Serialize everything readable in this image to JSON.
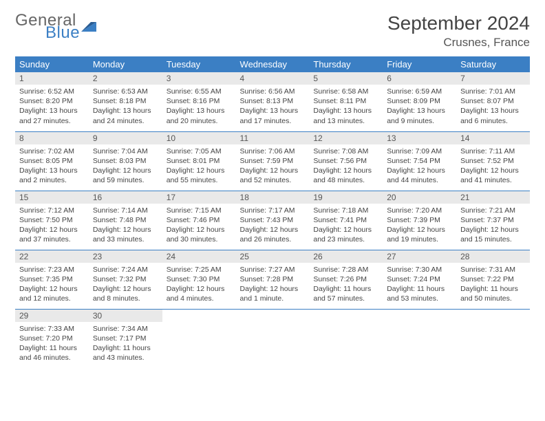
{
  "brand": {
    "word1": "General",
    "word2": "Blue"
  },
  "header": {
    "title": "September 2024",
    "location": "Crusnes, France"
  },
  "colors": {
    "header_bg": "#3b7fc4",
    "header_text": "#ffffff",
    "daynum_bg": "#e9e9e9",
    "row_border": "#3b7fc4",
    "text": "#444444",
    "page_bg": "#ffffff"
  },
  "weekdays": [
    "Sunday",
    "Monday",
    "Tuesday",
    "Wednesday",
    "Thursday",
    "Friday",
    "Saturday"
  ],
  "weeks": [
    [
      {
        "n": "1",
        "sr": "Sunrise: 6:52 AM",
        "ss": "Sunset: 8:20 PM",
        "d1": "Daylight: 13 hours",
        "d2": "and 27 minutes."
      },
      {
        "n": "2",
        "sr": "Sunrise: 6:53 AM",
        "ss": "Sunset: 8:18 PM",
        "d1": "Daylight: 13 hours",
        "d2": "and 24 minutes."
      },
      {
        "n": "3",
        "sr": "Sunrise: 6:55 AM",
        "ss": "Sunset: 8:16 PM",
        "d1": "Daylight: 13 hours",
        "d2": "and 20 minutes."
      },
      {
        "n": "4",
        "sr": "Sunrise: 6:56 AM",
        "ss": "Sunset: 8:13 PM",
        "d1": "Daylight: 13 hours",
        "d2": "and 17 minutes."
      },
      {
        "n": "5",
        "sr": "Sunrise: 6:58 AM",
        "ss": "Sunset: 8:11 PM",
        "d1": "Daylight: 13 hours",
        "d2": "and 13 minutes."
      },
      {
        "n": "6",
        "sr": "Sunrise: 6:59 AM",
        "ss": "Sunset: 8:09 PM",
        "d1": "Daylight: 13 hours",
        "d2": "and 9 minutes."
      },
      {
        "n": "7",
        "sr": "Sunrise: 7:01 AM",
        "ss": "Sunset: 8:07 PM",
        "d1": "Daylight: 13 hours",
        "d2": "and 6 minutes."
      }
    ],
    [
      {
        "n": "8",
        "sr": "Sunrise: 7:02 AM",
        "ss": "Sunset: 8:05 PM",
        "d1": "Daylight: 13 hours",
        "d2": "and 2 minutes."
      },
      {
        "n": "9",
        "sr": "Sunrise: 7:04 AM",
        "ss": "Sunset: 8:03 PM",
        "d1": "Daylight: 12 hours",
        "d2": "and 59 minutes."
      },
      {
        "n": "10",
        "sr": "Sunrise: 7:05 AM",
        "ss": "Sunset: 8:01 PM",
        "d1": "Daylight: 12 hours",
        "d2": "and 55 minutes."
      },
      {
        "n": "11",
        "sr": "Sunrise: 7:06 AM",
        "ss": "Sunset: 7:59 PM",
        "d1": "Daylight: 12 hours",
        "d2": "and 52 minutes."
      },
      {
        "n": "12",
        "sr": "Sunrise: 7:08 AM",
        "ss": "Sunset: 7:56 PM",
        "d1": "Daylight: 12 hours",
        "d2": "and 48 minutes."
      },
      {
        "n": "13",
        "sr": "Sunrise: 7:09 AM",
        "ss": "Sunset: 7:54 PM",
        "d1": "Daylight: 12 hours",
        "d2": "and 44 minutes."
      },
      {
        "n": "14",
        "sr": "Sunrise: 7:11 AM",
        "ss": "Sunset: 7:52 PM",
        "d1": "Daylight: 12 hours",
        "d2": "and 41 minutes."
      }
    ],
    [
      {
        "n": "15",
        "sr": "Sunrise: 7:12 AM",
        "ss": "Sunset: 7:50 PM",
        "d1": "Daylight: 12 hours",
        "d2": "and 37 minutes."
      },
      {
        "n": "16",
        "sr": "Sunrise: 7:14 AM",
        "ss": "Sunset: 7:48 PM",
        "d1": "Daylight: 12 hours",
        "d2": "and 33 minutes."
      },
      {
        "n": "17",
        "sr": "Sunrise: 7:15 AM",
        "ss": "Sunset: 7:46 PM",
        "d1": "Daylight: 12 hours",
        "d2": "and 30 minutes."
      },
      {
        "n": "18",
        "sr": "Sunrise: 7:17 AM",
        "ss": "Sunset: 7:43 PM",
        "d1": "Daylight: 12 hours",
        "d2": "and 26 minutes."
      },
      {
        "n": "19",
        "sr": "Sunrise: 7:18 AM",
        "ss": "Sunset: 7:41 PM",
        "d1": "Daylight: 12 hours",
        "d2": "and 23 minutes."
      },
      {
        "n": "20",
        "sr": "Sunrise: 7:20 AM",
        "ss": "Sunset: 7:39 PM",
        "d1": "Daylight: 12 hours",
        "d2": "and 19 minutes."
      },
      {
        "n": "21",
        "sr": "Sunrise: 7:21 AM",
        "ss": "Sunset: 7:37 PM",
        "d1": "Daylight: 12 hours",
        "d2": "and 15 minutes."
      }
    ],
    [
      {
        "n": "22",
        "sr": "Sunrise: 7:23 AM",
        "ss": "Sunset: 7:35 PM",
        "d1": "Daylight: 12 hours",
        "d2": "and 12 minutes."
      },
      {
        "n": "23",
        "sr": "Sunrise: 7:24 AM",
        "ss": "Sunset: 7:32 PM",
        "d1": "Daylight: 12 hours",
        "d2": "and 8 minutes."
      },
      {
        "n": "24",
        "sr": "Sunrise: 7:25 AM",
        "ss": "Sunset: 7:30 PM",
        "d1": "Daylight: 12 hours",
        "d2": "and 4 minutes."
      },
      {
        "n": "25",
        "sr": "Sunrise: 7:27 AM",
        "ss": "Sunset: 7:28 PM",
        "d1": "Daylight: 12 hours",
        "d2": "and 1 minute."
      },
      {
        "n": "26",
        "sr": "Sunrise: 7:28 AM",
        "ss": "Sunset: 7:26 PM",
        "d1": "Daylight: 11 hours",
        "d2": "and 57 minutes."
      },
      {
        "n": "27",
        "sr": "Sunrise: 7:30 AM",
        "ss": "Sunset: 7:24 PM",
        "d1": "Daylight: 11 hours",
        "d2": "and 53 minutes."
      },
      {
        "n": "28",
        "sr": "Sunrise: 7:31 AM",
        "ss": "Sunset: 7:22 PM",
        "d1": "Daylight: 11 hours",
        "d2": "and 50 minutes."
      }
    ],
    [
      {
        "n": "29",
        "sr": "Sunrise: 7:33 AM",
        "ss": "Sunset: 7:20 PM",
        "d1": "Daylight: 11 hours",
        "d2": "and 46 minutes."
      },
      {
        "n": "30",
        "sr": "Sunrise: 7:34 AM",
        "ss": "Sunset: 7:17 PM",
        "d1": "Daylight: 11 hours",
        "d2": "and 43 minutes."
      },
      {
        "empty": true
      },
      {
        "empty": true
      },
      {
        "empty": true
      },
      {
        "empty": true
      },
      {
        "empty": true
      }
    ]
  ]
}
